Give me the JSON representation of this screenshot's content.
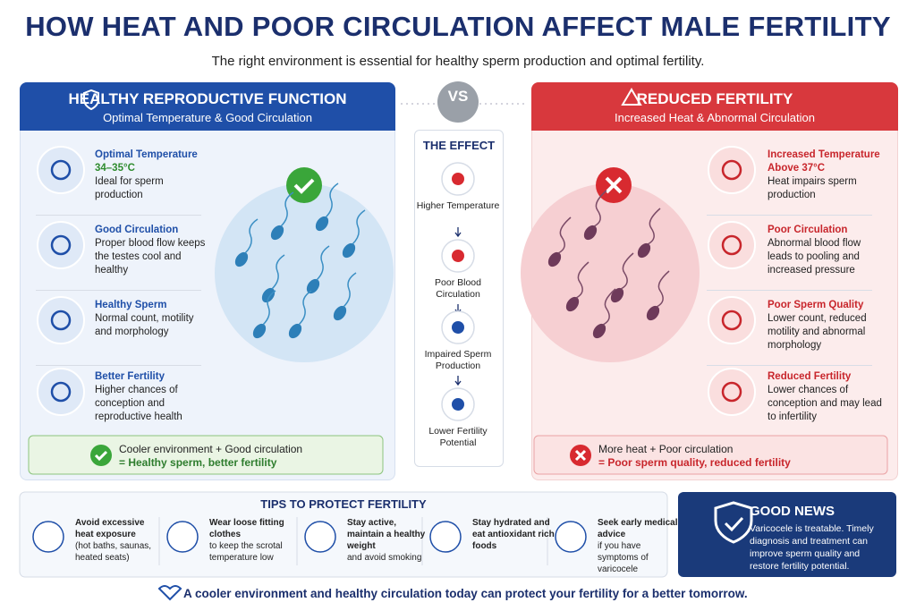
{
  "header": {
    "title": "HOW HEAT AND POOR CIRCULATION AFFECT MALE FERTILITY",
    "subtitle": "The right environment is essential for healthy sperm production and optimal fertility."
  },
  "left": {
    "title": "HEALTHY REPRODUCTIVE FUNCTION",
    "subtitle": "Optimal Temperature & Good Circulation",
    "items": [
      {
        "title": "Optimal Temperature",
        "highlight": "34–35°C",
        "text": "Ideal for sperm production"
      },
      {
        "title": "Good Circulation",
        "text": "Proper blood flow keeps the testes cool and healthy"
      },
      {
        "title": "Healthy Sperm",
        "text": "Normal count, motility and morphology"
      },
      {
        "title": "Better Fertility",
        "text": "Higher chances of conception and reproductive health"
      }
    ],
    "summary": [
      "Cooler environment + Good circulation",
      "= Healthy sperm, better fertility"
    ]
  },
  "vs": "VS",
  "effect": {
    "title": "THE EFFECT",
    "steps": [
      "Higher Temperature",
      "Poor Blood Circulation",
      "Impaired Sperm Production",
      "Lower Fertility Potential"
    ]
  },
  "right": {
    "title": "REDUCED FERTILITY",
    "subtitle": "Increased Heat & Abnormal Circulation",
    "items": [
      {
        "title": "Increased Temperature",
        "highlight": "Above 37°C",
        "text": "Heat impairs sperm production"
      },
      {
        "title": "Poor Circulation",
        "text": "Abnormal blood flow leads to pooling and increased pressure"
      },
      {
        "title": "Poor Sperm Quality",
        "text": "Lower count, reduced motility and abnormal morphology"
      },
      {
        "title": "Reduced Fertility",
        "text": "Lower chances of conception and may lead to infertility"
      }
    ],
    "summary": [
      "More heat + Poor circulation",
      "= Poor sperm quality, reduced fertility"
    ]
  },
  "tips": {
    "title": "TIPS TO PROTECT FERTILITY",
    "items": [
      {
        "title": "Avoid excessive heat exposure",
        "text": "(hot baths, saunas, heated seats)"
      },
      {
        "title": "Wear loose fitting clothes",
        "text": "to keep the scrotal temperature low"
      },
      {
        "title": "Stay active, maintain a healthy weight",
        "text": "and avoid smoking"
      },
      {
        "title": "Stay hydrated and eat antioxidant rich foods"
      },
      {
        "title": "Seek early medical advice",
        "text": "if you have symptoms of varicocele"
      }
    ]
  },
  "good_news": {
    "title": "GOOD NEWS",
    "text": "Varicocele is treatable. Timely diagnosis and treatment can improve sperm quality and restore fertility potential."
  },
  "footer": "A cooler environment and healthy circulation today can protect your fertility for a better tomorrow."
}
